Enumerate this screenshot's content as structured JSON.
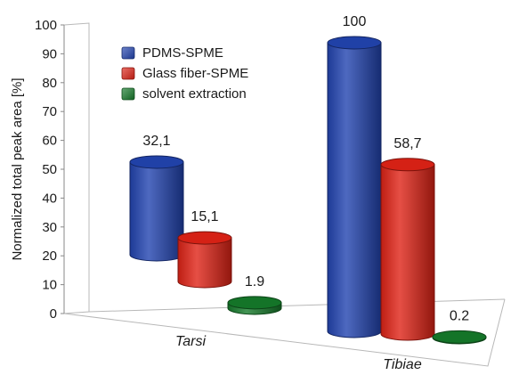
{
  "chart_data": {
    "type": "bar",
    "title": "",
    "xlabel": "",
    "ylabel": "Normalized total peak area [%]",
    "ylim": [
      0,
      100
    ],
    "yticks": [
      "0",
      "10",
      "20",
      "30",
      "40",
      "50",
      "60",
      "70",
      "80",
      "90",
      "100"
    ],
    "categories": [
      "Tarsi",
      "Tibiae"
    ],
    "series": [
      {
        "name": "PDMS-SPME",
        "color": "#2244b0",
        "values": [
          32.1,
          100
        ],
        "labels": [
          "32,1",
          "100"
        ]
      },
      {
        "name": "Glass fiber-SPME",
        "color": "#e02316",
        "values": [
          15.1,
          58.7
        ],
        "labels": [
          "15,1",
          "58,7"
        ]
      },
      {
        "name": "solvent extraction",
        "color": "#157a2a",
        "values": [
          1.9,
          0.2
        ],
        "labels": [
          "1.9",
          "0.2"
        ]
      }
    ],
    "legend_position": "top-left",
    "style": "3d-cylinder"
  }
}
